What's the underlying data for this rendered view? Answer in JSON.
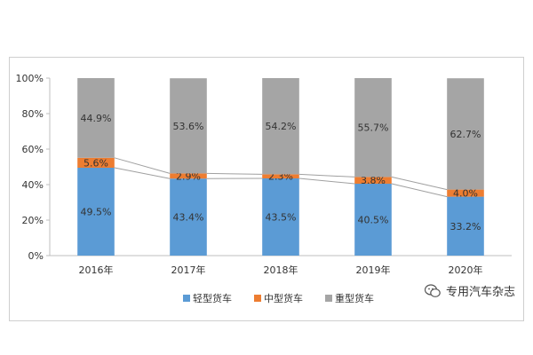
{
  "chart_data": {
    "type": "bar",
    "stacked": true,
    "categories": [
      "2016年",
      "2017年",
      "2018年",
      "2019年",
      "2020年"
    ],
    "series": [
      {
        "name": "轻型货车",
        "color": "#5b9bd5",
        "values": [
          49.5,
          43.4,
          43.5,
          40.5,
          33.2
        ],
        "labels": [
          "49.5%",
          "43.4%",
          "43.5%",
          "40.5%",
          "33.2%"
        ]
      },
      {
        "name": "中型货车",
        "color": "#ed7d31",
        "values": [
          5.6,
          2.9,
          2.3,
          3.8,
          4.0
        ],
        "labels": [
          "5.6%",
          "2.9%",
          "2.3%",
          "3.8%",
          "4.0%"
        ]
      },
      {
        "name": "重型货车",
        "color": "#a5a5a5",
        "values": [
          44.9,
          53.6,
          54.2,
          55.7,
          62.7
        ],
        "labels": [
          "44.9%",
          "53.6%",
          "54.2%",
          "55.7%",
          "62.7%"
        ]
      }
    ],
    "y_ticks": [
      "0%",
      "20%",
      "40%",
      "60%",
      "80%",
      "100%"
    ],
    "ylim": [
      0,
      100
    ],
    "series_lines": true,
    "grid": false,
    "legend_position": "bottom"
  },
  "watermark": {
    "text": "专用汽车杂志",
    "icon": "wechat-icon"
  }
}
